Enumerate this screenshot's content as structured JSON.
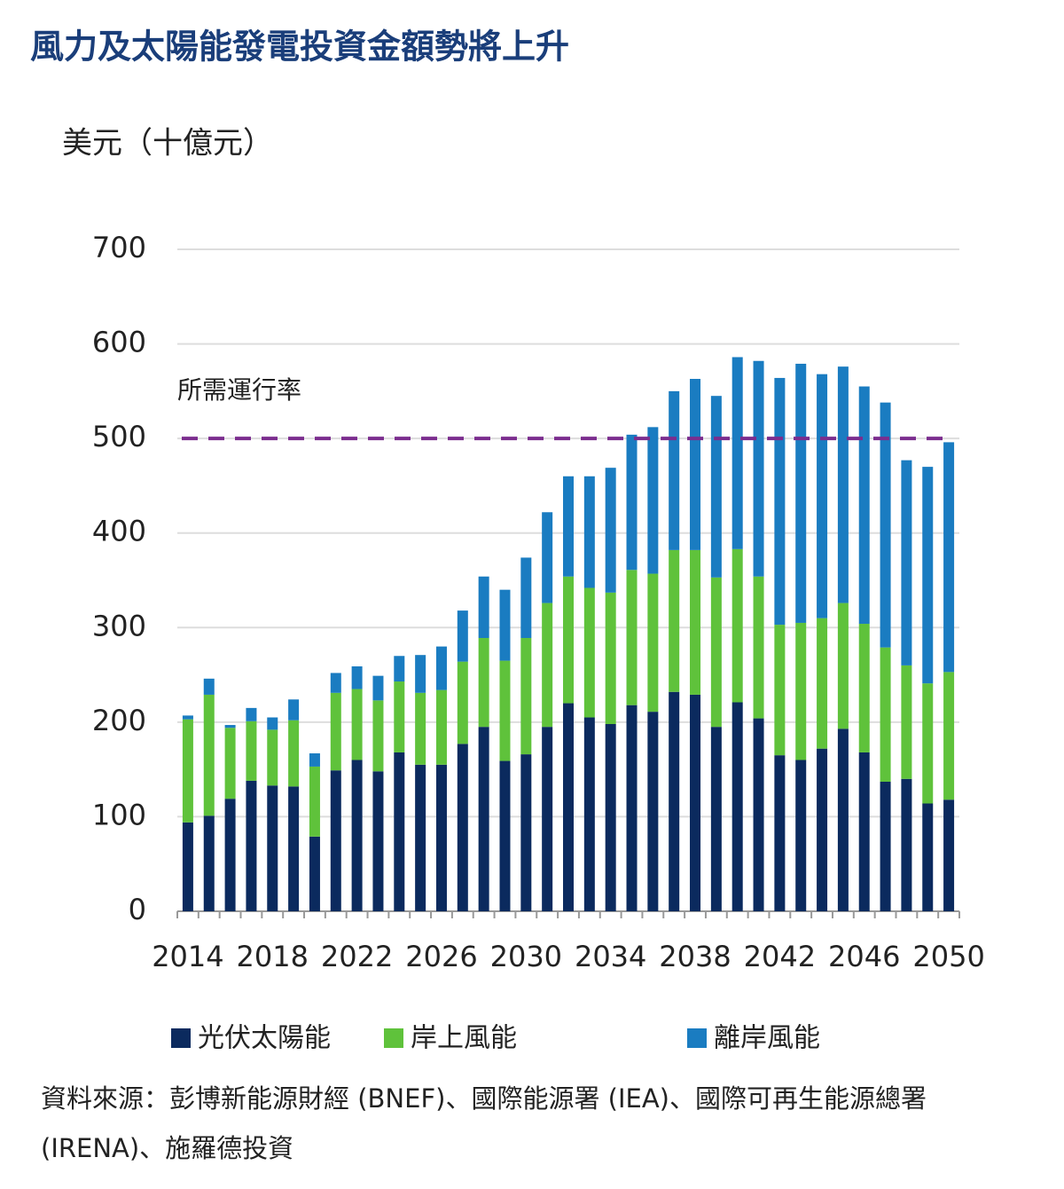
{
  "chart_data": {
    "type": "stacked_bar",
    "title": "風力及太陽能發電投資金額勢將上升",
    "y_label": "美元（十億元）",
    "source": "資料來源：彭博新能源財經 (BNEF)、國際能源署 (IEA)、國際可再生能源總署 (IRENA)、施羅德投資",
    "categories": [
      "2014",
      null,
      null,
      null,
      "2018",
      null,
      null,
      null,
      "2022",
      null,
      null,
      null,
      "2026",
      null,
      null,
      null,
      "2030",
      null,
      null,
      null,
      "2034",
      null,
      null,
      null,
      "2038",
      null,
      null,
      null,
      "2042",
      null,
      null,
      null,
      "2046",
      null,
      null,
      null,
      "2050"
    ],
    "series": [
      {
        "name": "光伏太陽能",
        "color": "#0b2a5e",
        "values": [
          94,
          101,
          119,
          138,
          133,
          132,
          79,
          149,
          160,
          148,
          168,
          155,
          155,
          177,
          195,
          159,
          166,
          195,
          220,
          205,
          198,
          218,
          211,
          232,
          229,
          195,
          221,
          204,
          165,
          160,
          172,
          193,
          168,
          137,
          140,
          114,
          118
        ]
      },
      {
        "name": "岸上風能",
        "color": "#5fc23b",
        "values": [
          109,
          128,
          75,
          63,
          59,
          70,
          74,
          82,
          75,
          75,
          75,
          76,
          79,
          87,
          94,
          106,
          123,
          131,
          134,
          137,
          139,
          143,
          146,
          150,
          153,
          158,
          162,
          150,
          138,
          145,
          138,
          133,
          136,
          142,
          120,
          127,
          135
        ]
      },
      {
        "name": "離岸風能",
        "color": "#1a7cc1",
        "values": [
          4,
          17,
          3,
          14,
          13,
          22,
          14,
          21,
          24,
          26,
          27,
          40,
          46,
          54,
          65,
          75,
          85,
          96,
          106,
          118,
          132,
          143,
          155,
          168,
          181,
          192,
          203,
          228,
          261,
          274,
          258,
          250,
          251,
          259,
          217,
          229,
          243
        ]
      }
    ],
    "reference_line": {
      "value": 500,
      "label": "所需運行率",
      "color": "#7b2d8e"
    },
    "ylim": [
      0,
      700
    ],
    "yticks": [
      0,
      100,
      200,
      300,
      400,
      500,
      600,
      700
    ],
    "grid": true
  }
}
